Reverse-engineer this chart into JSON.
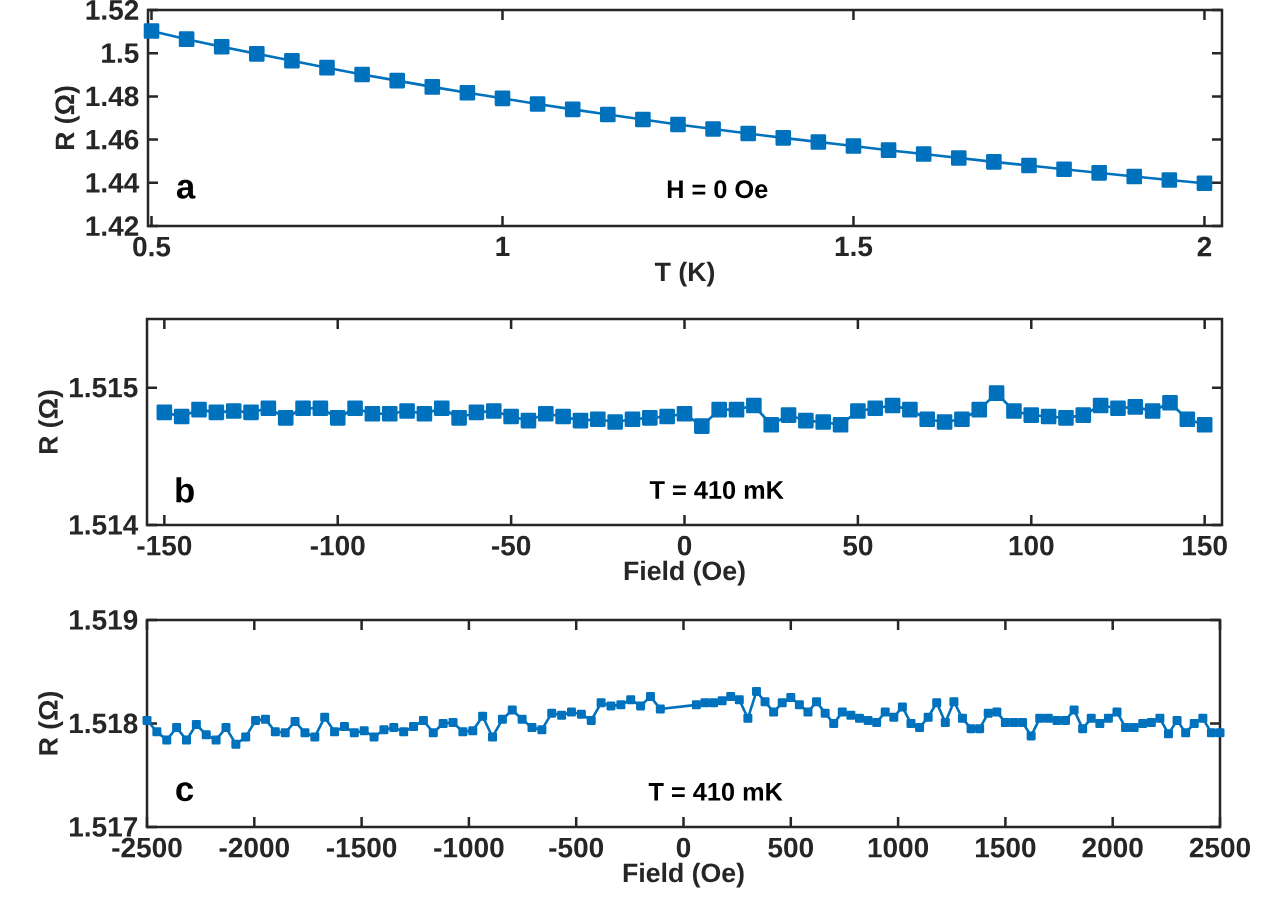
{
  "chart_data": [
    {
      "type": "line",
      "xlabel": "T (K)",
      "ylabel": "R (Ω)",
      "annotations": [
        "a",
        "H = 0 Oe"
      ],
      "color": "#0072bd",
      "marker": "square",
      "line_style": "solid",
      "x": [
        0.5,
        0.55,
        0.6,
        0.65,
        0.7,
        0.75,
        0.8,
        0.85,
        0.9,
        0.95,
        1,
        1.05,
        1.1,
        1.15,
        1.2,
        1.25,
        1.3,
        1.35,
        1.4,
        1.45,
        1.5,
        1.55,
        1.6,
        1.65,
        1.7,
        1.75,
        1.8,
        1.85,
        1.9,
        1.95,
        2
      ],
      "values": [
        1.5103,
        1.5065,
        1.503,
        1.4997,
        1.4965,
        1.4933,
        1.4901,
        1.4873,
        1.4844,
        1.4817,
        1.4791,
        1.4765,
        1.474,
        1.4716,
        1.4693,
        1.467,
        1.4649,
        1.4628,
        1.4608,
        1.4589,
        1.457,
        1.4551,
        1.4533,
        1.4515,
        1.4497,
        1.448,
        1.4463,
        1.4446,
        1.4429,
        1.4413,
        1.4398
      ],
      "xlim": [
        0.495,
        2.025
      ],
      "ylim": [
        1.42,
        1.52
      ],
      "xticks": [
        0.5,
        1,
        1.5,
        2
      ],
      "yticks": [
        1.42,
        1.44,
        1.46,
        1.48,
        1.5,
        1.52
      ]
    },
    {
      "type": "line",
      "xlabel": "Field (Oe)",
      "ylabel": "R (Ω)",
      "annotations": [
        "b",
        "T = 410 mK"
      ],
      "color": "#0072bd",
      "marker": "square",
      "line_style": "solid",
      "x": [
        -150,
        -145,
        -140,
        -135,
        -130,
        -125,
        -120,
        -115,
        -110,
        -105,
        -100,
        -95,
        -90,
        -85,
        -80,
        -75,
        -70,
        -65,
        -60,
        -55,
        -50,
        -45,
        -40,
        -35,
        -30,
        -25,
        -20,
        -15,
        -10,
        -5,
        0,
        5,
        10,
        15,
        20,
        25,
        30,
        35,
        40,
        45,
        50,
        55,
        60,
        65,
        70,
        75,
        80,
        85,
        90,
        95,
        100,
        105,
        110,
        115,
        120,
        125,
        130,
        135,
        140,
        145,
        150
      ],
      "values": [
        1.51482,
        1.51479,
        1.51484,
        1.51482,
        1.51483,
        1.51482,
        1.51485,
        1.51478,
        1.51485,
        1.51485,
        1.51478,
        1.51485,
        1.51481,
        1.51481,
        1.51483,
        1.51481,
        1.51485,
        1.51478,
        1.51482,
        1.51483,
        1.51479,
        1.51476,
        1.51481,
        1.51479,
        1.51476,
        1.51477,
        1.51475,
        1.51477,
        1.51478,
        1.51479,
        1.51481,
        1.51472,
        1.51484,
        1.51484,
        1.51487,
        1.51473,
        1.5148,
        1.51476,
        1.51475,
        1.51473,
        1.51483,
        1.51485,
        1.51487,
        1.51484,
        1.51477,
        1.51475,
        1.51477,
        1.51484,
        1.51496,
        1.51483,
        1.5148,
        1.51479,
        1.51478,
        1.5148,
        1.51487,
        1.51485,
        1.51486,
        1.51483,
        1.51489,
        1.51477,
        1.51473
      ],
      "xlim": [
        -155,
        155
      ],
      "ylim": [
        1.514,
        1.5155
      ],
      "xticks": [
        -150,
        -100,
        -50,
        0,
        50,
        100,
        150
      ],
      "yticks": [
        1.514,
        1.515
      ]
    },
    {
      "type": "line",
      "xlabel": "Field (Oe)",
      "ylabel": "R (Ω)",
      "annotations": [
        "c",
        "T = 410 mK"
      ],
      "color": "#0072bd",
      "marker": "square",
      "line_style": "solid",
      "x": [
        -2500,
        -2454,
        -2408,
        -2362,
        -2316,
        -2270,
        -2224,
        -2178,
        -2132,
        -2086,
        -2040,
        -1994,
        -1948,
        -1902,
        -1856,
        -1810,
        -1764,
        -1718,
        -1672,
        -1626,
        -1580,
        -1534,
        -1488,
        -1442,
        -1396,
        -1350,
        -1304,
        -1258,
        -1212,
        -1166,
        -1120,
        -1074,
        -1028,
        -982,
        -936,
        -890,
        -844,
        -798,
        -752,
        -706,
        -660,
        -614,
        -568,
        -522,
        -476,
        -430,
        -384,
        -338,
        -292,
        -246,
        -200,
        -154,
        -108,
        60,
        100,
        140,
        180,
        220,
        260,
        300,
        340,
        380,
        420,
        460,
        500,
        540,
        580,
        620,
        660,
        700,
        740,
        780,
        820,
        860,
        900,
        940,
        980,
        1020,
        1060,
        1100,
        1140,
        1180,
        1220,
        1260,
        1300,
        1340,
        1380,
        1420,
        1460,
        1500,
        1540,
        1580,
        1620,
        1660,
        1700,
        1740,
        1780,
        1820,
        1860,
        1900,
        1940,
        1980,
        2020,
        2060,
        2100,
        2140,
        2180,
        2220,
        2260,
        2300,
        2340,
        2380,
        2420,
        2460,
        2500
      ],
      "values": [
        1.51803,
        1.51792,
        1.51784,
        1.51796,
        1.51784,
        1.51799,
        1.51789,
        1.51784,
        1.51796,
        1.5178,
        1.51787,
        1.51803,
        1.51804,
        1.51792,
        1.51791,
        1.51802,
        1.51791,
        1.51787,
        1.51806,
        1.51792,
        1.51797,
        1.51791,
        1.51793,
        1.51787,
        1.51794,
        1.51796,
        1.51792,
        1.51797,
        1.51803,
        1.51791,
        1.518,
        1.51801,
        1.51792,
        1.51793,
        1.51807,
        1.51787,
        1.51804,
        1.51813,
        1.51804,
        1.51796,
        1.51794,
        1.5181,
        1.51808,
        1.51811,
        1.51809,
        1.51803,
        1.5182,
        1.51817,
        1.51818,
        1.51823,
        1.51817,
        1.51826,
        1.51814,
        1.51818,
        1.5182,
        1.5182,
        1.51822,
        1.51826,
        1.51823,
        1.51805,
        1.51831,
        1.51821,
        1.51811,
        1.5182,
        1.51825,
        1.51818,
        1.51811,
        1.51821,
        1.5181,
        1.518,
        1.51811,
        1.51808,
        1.51805,
        1.51803,
        1.51801,
        1.51811,
        1.51806,
        1.51816,
        1.518,
        1.51796,
        1.51806,
        1.5182,
        1.51801,
        1.51821,
        1.51805,
        1.51795,
        1.51795,
        1.5181,
        1.51811,
        1.51801,
        1.51801,
        1.51801,
        1.51788,
        1.51805,
        1.51805,
        1.51803,
        1.51803,
        1.51813,
        1.51795,
        1.51805,
        1.518,
        1.51805,
        1.51811,
        1.51796,
        1.51796,
        1.518,
        1.51801,
        1.51805,
        1.5179,
        1.51803,
        1.51791,
        1.518,
        1.51805,
        1.51791,
        1.51791
      ],
      "xlim": [
        -2500,
        2500
      ],
      "ylim": [
        1.517,
        1.519
      ],
      "xticks": [
        -2500,
        -2000,
        -1500,
        -1000,
        -500,
        0,
        500,
        1000,
        1500,
        2000,
        2500
      ],
      "yticks": [
        1.517,
        1.518,
        1.519
      ]
    }
  ]
}
